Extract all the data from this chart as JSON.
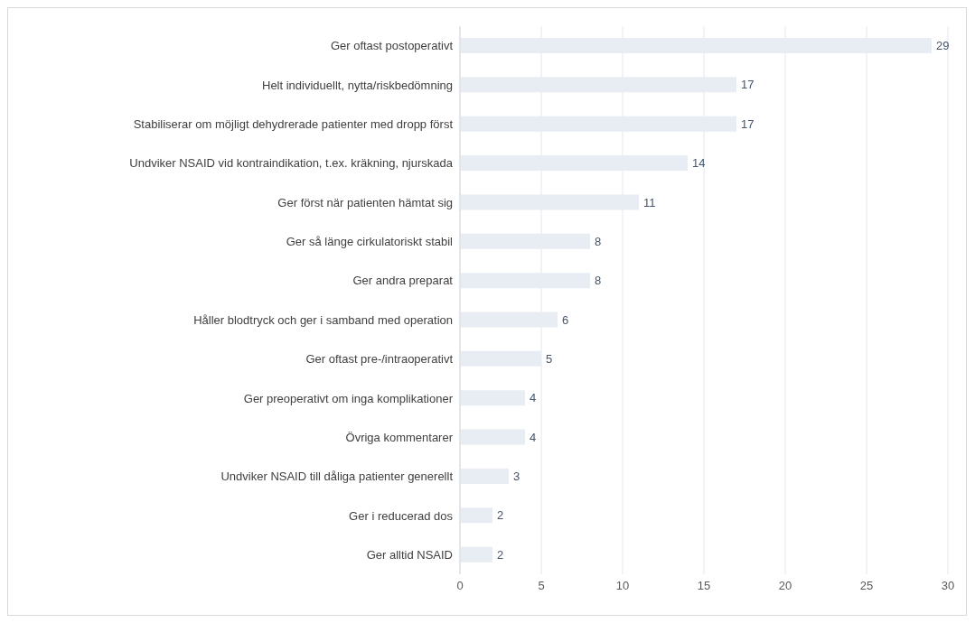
{
  "chart_data": {
    "type": "bar",
    "orientation": "horizontal",
    "categories": [
      "Ger oftast postoperativt",
      "Helt individuellt, nytta/riskbedömning",
      "Stabiliserar om möjligt dehydrerade patienter med dropp först",
      "Undviker NSAID vid kontraindikation, t.ex. kräkning, njurskada",
      "Ger först när patienten hämtat sig",
      "Ger så länge cirkulatoriskt stabil",
      "Ger andra preparat",
      "Håller blodtryck och ger i samband med operation",
      "Ger oftast pre-/intraoperativt",
      "Ger preoperativt om inga komplikationer",
      "Övriga kommentarer",
      "Undviker NSAID till dåliga patienter generellt",
      "Ger i reducerad dos",
      "Ger alltid NSAID"
    ],
    "values": [
      29,
      17,
      17,
      14,
      11,
      8,
      8,
      6,
      5,
      4,
      4,
      3,
      2,
      2
    ],
    "color": "#e8ecf3",
    "xlim": [
      0,
      30
    ],
    "xticks": [
      0,
      5,
      10,
      15,
      20,
      25,
      30
    ],
    "grid": "x",
    "data_labels": true
  }
}
